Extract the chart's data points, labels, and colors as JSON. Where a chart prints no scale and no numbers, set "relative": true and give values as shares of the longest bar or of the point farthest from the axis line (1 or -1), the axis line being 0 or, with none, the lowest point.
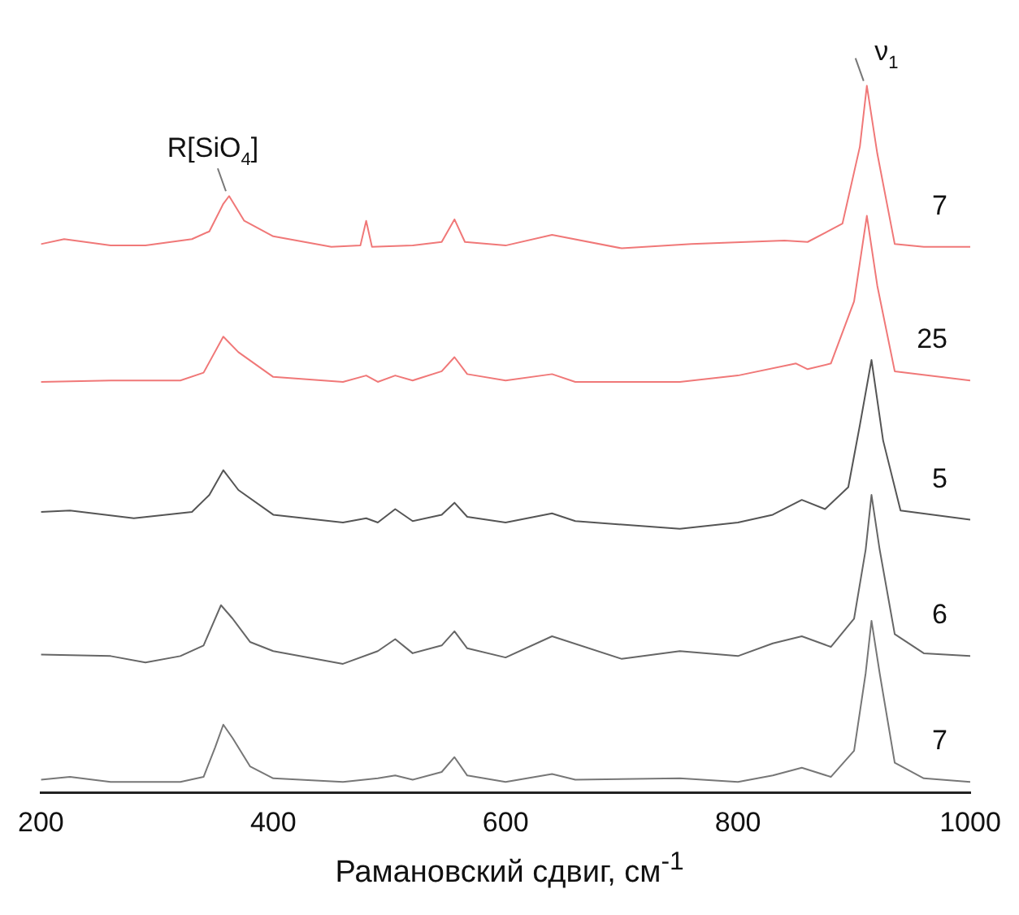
{
  "chart_data": {
    "type": "line",
    "relative": true,
    "xlabel": "Рамановский сдвиг, см$^{-1}$",
    "xlim": [
      200,
      1000
    ],
    "xticks": [
      200,
      400,
      600,
      800,
      1000
    ],
    "grid": false,
    "legend": false,
    "marker": "none",
    "annotations": [
      {
        "text": "R[SiO$_{4}$]",
        "x": 362,
        "y": 0.844
      },
      {
        "text": "ν$_{1}$",
        "x": 911,
        "y": 1.0
      }
    ],
    "series": [
      {
        "name": "7",
        "color": "#f07878",
        "x": [
          200,
          220,
          260,
          290,
          330,
          345,
          357,
          362,
          375,
          400,
          450,
          475,
          480,
          485,
          520,
          545,
          556,
          565,
          600,
          640,
          700,
          760,
          840,
          860,
          890,
          905,
          911,
          920,
          935,
          960,
          1000
        ],
        "values": [
          0.776,
          0.783,
          0.774,
          0.774,
          0.783,
          0.794,
          0.833,
          0.844,
          0.809,
          0.787,
          0.772,
          0.774,
          0.809,
          0.772,
          0.774,
          0.779,
          0.811,
          0.779,
          0.774,
          0.789,
          0.77,
          0.776,
          0.781,
          0.779,
          0.805,
          0.914,
          1.0,
          0.904,
          0.776,
          0.772,
          0.772
        ]
      },
      {
        "name": "25",
        "color": "#f07878",
        "x": [
          200,
          260,
          320,
          340,
          357,
          370,
          400,
          460,
          480,
          490,
          505,
          520,
          545,
          556,
          567,
          600,
          640,
          660,
          750,
          800,
          850,
          860,
          880,
          900,
          911,
          920,
          935,
          1000
        ],
        "values": [
          0.581,
          0.583,
          0.583,
          0.594,
          0.645,
          0.623,
          0.588,
          0.581,
          0.59,
          0.581,
          0.59,
          0.583,
          0.596,
          0.616,
          0.592,
          0.583,
          0.592,
          0.581,
          0.581,
          0.59,
          0.607,
          0.599,
          0.607,
          0.695,
          0.816,
          0.717,
          0.596,
          0.583
        ]
      },
      {
        "name": "5",
        "color": "#555555",
        "x": [
          200,
          225,
          280,
          330,
          345,
          357,
          370,
          400,
          460,
          480,
          490,
          505,
          520,
          545,
          556,
          567,
          600,
          640,
          660,
          750,
          800,
          830,
          855,
          875,
          895,
          905,
          915,
          925,
          940,
          1000
        ],
        "values": [
          0.397,
          0.399,
          0.388,
          0.397,
          0.421,
          0.456,
          0.428,
          0.393,
          0.382,
          0.388,
          0.382,
          0.401,
          0.384,
          0.393,
          0.41,
          0.39,
          0.382,
          0.395,
          0.384,
          0.373,
          0.382,
          0.393,
          0.414,
          0.401,
          0.432,
          0.52,
          0.612,
          0.498,
          0.399,
          0.386
        ]
      },
      {
        "name": "6",
        "color": "#666666",
        "x": [
          200,
          260,
          290,
          320,
          340,
          355,
          365,
          380,
          400,
          460,
          490,
          505,
          520,
          545,
          556,
          567,
          600,
          640,
          700,
          750,
          800,
          830,
          855,
          880,
          900,
          910,
          915,
          922,
          935,
          960,
          1000
        ],
        "values": [
          0.195,
          0.193,
          0.184,
          0.193,
          0.208,
          0.265,
          0.246,
          0.213,
          0.2,
          0.182,
          0.2,
          0.217,
          0.197,
          0.208,
          0.228,
          0.204,
          0.191,
          0.221,
          0.189,
          0.2,
          0.193,
          0.211,
          0.221,
          0.206,
          0.246,
          0.344,
          0.421,
          0.344,
          0.224,
          0.197,
          0.193
        ]
      },
      {
        "name": "7",
        "color": "#777777",
        "x": [
          200,
          225,
          260,
          320,
          340,
          350,
          357,
          365,
          380,
          400,
          460,
          490,
          505,
          520,
          545,
          556,
          567,
          600,
          640,
          660,
          750,
          800,
          830,
          855,
          880,
          900,
          910,
          915,
          922,
          935,
          960,
          1000
        ],
        "values": [
          0.018,
          0.022,
          0.015,
          0.015,
          0.022,
          0.064,
          0.096,
          0.077,
          0.037,
          0.02,
          0.015,
          0.02,
          0.024,
          0.018,
          0.029,
          0.05,
          0.024,
          0.015,
          0.026,
          0.018,
          0.02,
          0.015,
          0.024,
          0.035,
          0.022,
          0.059,
          0.169,
          0.243,
          0.169,
          0.042,
          0.02,
          0.015
        ]
      }
    ]
  }
}
